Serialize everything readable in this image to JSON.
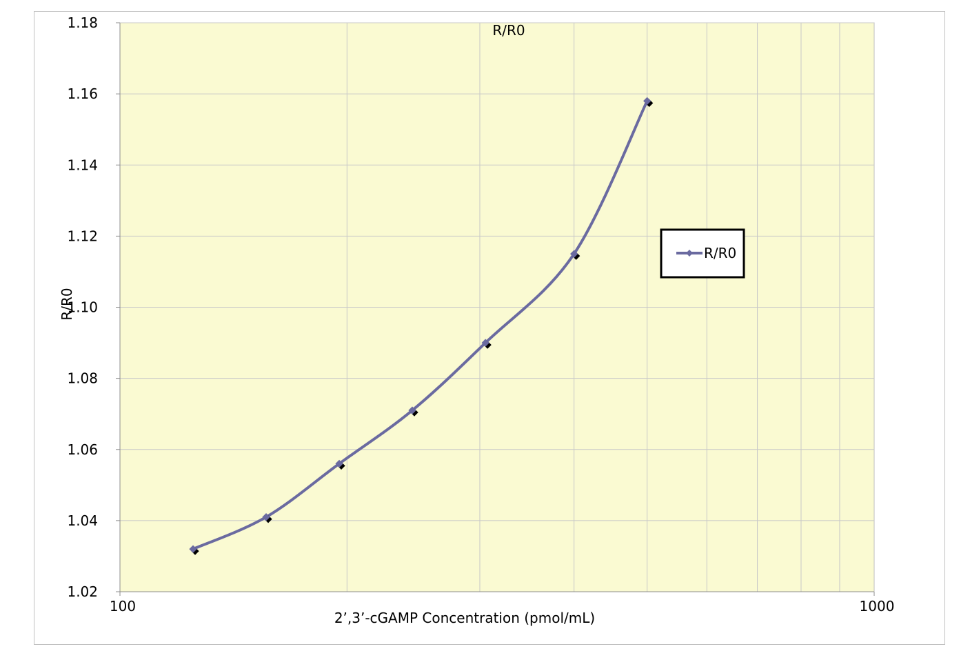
{
  "chart_data": {
    "type": "line",
    "title": "R/R0",
    "xlabel": "2’,3’-cGAMP Concentration  (pmol/mL)",
    "ylabel": "R/R0",
    "x_scale": "log",
    "xlim": [
      100,
      1000
    ],
    "ylim": [
      1.02,
      1.18
    ],
    "x_tick_labels": [
      "100",
      "1000"
    ],
    "y_tick_labels": [
      "1.02",
      "1.04",
      "1.06",
      "1.08",
      "1.10",
      "1.12",
      "1.14",
      "1.16",
      "1.18"
    ],
    "grid": true,
    "legend": {
      "placement": "right",
      "entries": [
        "R/R0"
      ]
    },
    "series": [
      {
        "name": "R/R0",
        "x": [
          125,
          156.25,
          195.3,
          244.1,
          305.2,
          400,
          500
        ],
        "y": [
          1.032,
          1.041,
          1.056,
          1.071,
          1.09,
          1.115,
          1.158
        ]
      }
    ],
    "colors": {
      "plot_background": "#fafad2",
      "line": "#6a6aa0",
      "marker_shadow": "#000000",
      "grid": "#c8c8c8"
    }
  }
}
